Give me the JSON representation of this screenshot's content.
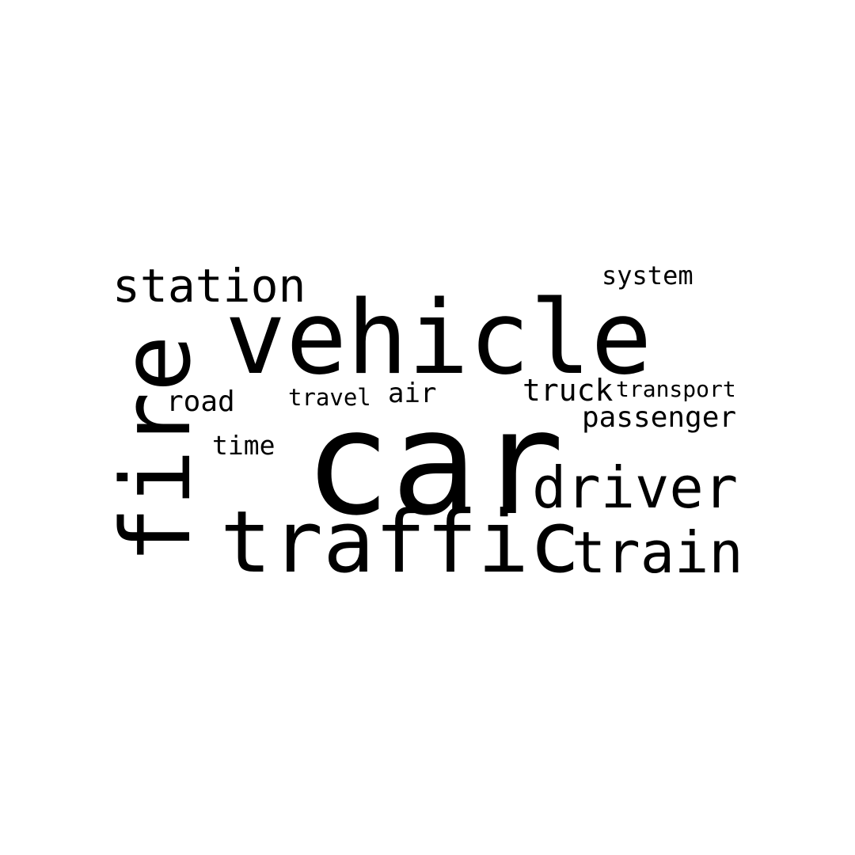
{
  "word_cloud": {
    "text_color": "#000000",
    "background_color": "#ffffff",
    "words": [
      {
        "text": "car",
        "orientation": "horizontal"
      },
      {
        "text": "vehicle",
        "orientation": "horizontal"
      },
      {
        "text": "traffic",
        "orientation": "horizontal"
      },
      {
        "text": "fire",
        "orientation": "vertical"
      },
      {
        "text": "train",
        "orientation": "horizontal"
      },
      {
        "text": "driver",
        "orientation": "horizontal"
      },
      {
        "text": "station",
        "orientation": "horizontal"
      },
      {
        "text": "passenger",
        "orientation": "horizontal"
      },
      {
        "text": "truck",
        "orientation": "horizontal"
      },
      {
        "text": "road",
        "orientation": "horizontal"
      },
      {
        "text": "time",
        "orientation": "horizontal"
      },
      {
        "text": "system",
        "orientation": "horizontal"
      },
      {
        "text": "air",
        "orientation": "horizontal"
      },
      {
        "text": "travel",
        "orientation": "horizontal"
      },
      {
        "text": "transport",
        "orientation": "horizontal"
      }
    ]
  }
}
